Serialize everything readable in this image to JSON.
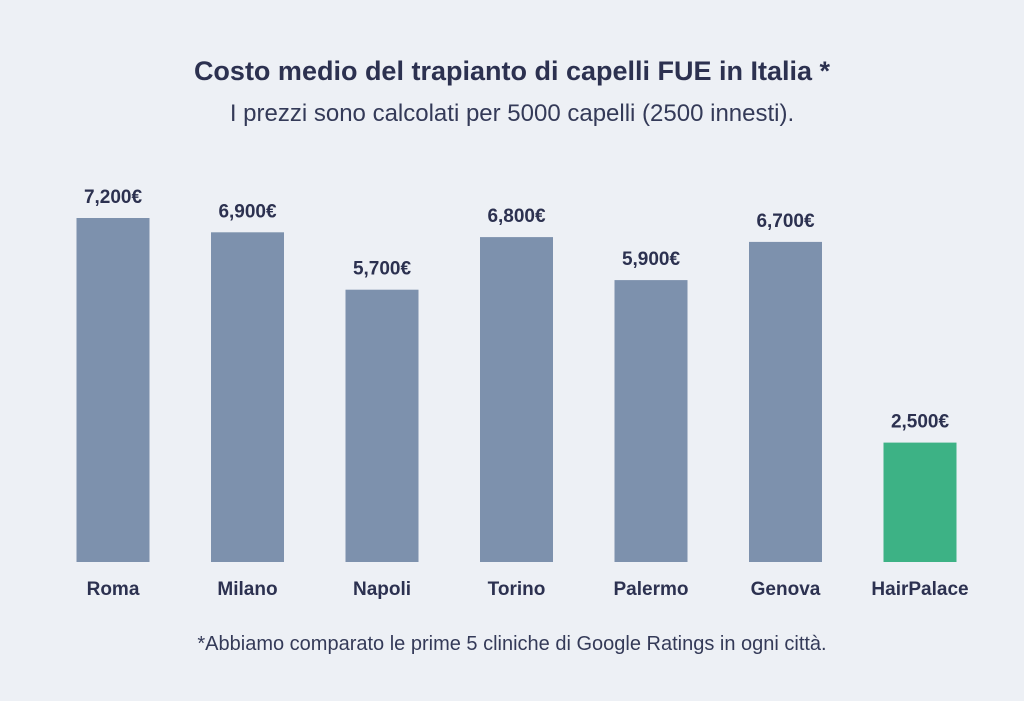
{
  "chart_data": {
    "type": "bar",
    "title": "Costo medio del trapianto di capelli FUE in Italia *",
    "subtitle": "I prezzi sono calcolati per 5000 capelli (2500 innesti).",
    "categories": [
      "Roma",
      "Milano",
      "Napoli",
      "Torino",
      "Palermo",
      "Genova",
      "HairPalace"
    ],
    "values": [
      7200,
      6900,
      5700,
      6800,
      5900,
      6700,
      2500
    ],
    "value_labels": [
      "7,200€",
      "6,900€",
      "5,700€",
      "6,800€",
      "5,900€",
      "6,700€",
      "2,500€"
    ],
    "ylim": [
      0,
      7200
    ],
    "grid": false,
    "footnote": "*Abbiamo comparato le prime 5 cliniche di Google Ratings in ogni città.",
    "colors": {
      "default_bar": "#7d91ad",
      "highlight_bar": "#3db285",
      "text": "#2c3150",
      "background": "#edf0f5"
    },
    "highlight_category": "HairPalace"
  }
}
